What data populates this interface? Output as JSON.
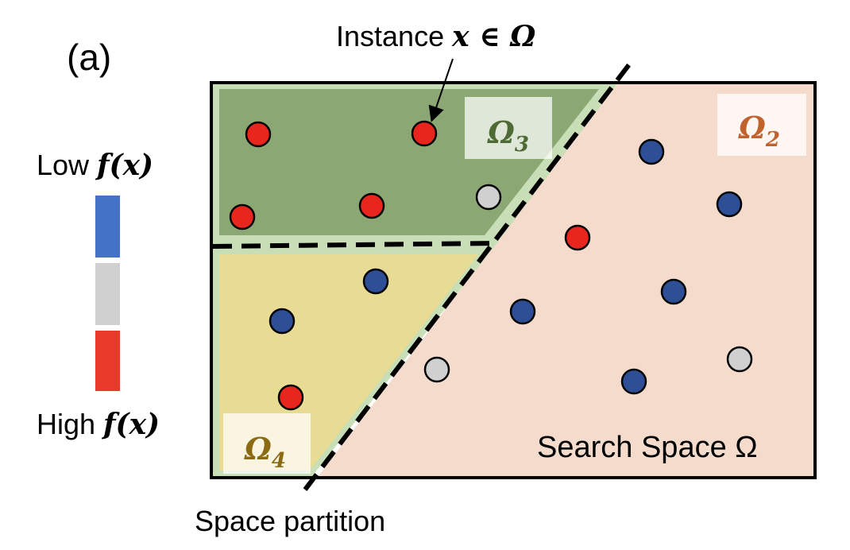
{
  "panel_label": "(a)",
  "legend": {
    "low_prefix": "Low ",
    "low_expr": "f(x)",
    "high_prefix": "High ",
    "high_expr": "f(x)",
    "colors": [
      "#4472C4",
      "#D0D0D0",
      "#E8392B"
    ]
  },
  "annotations": {
    "instance_prefix": "Instance ",
    "instance_math": "x ∈ Ω",
    "search_space": "Search Space Ω",
    "space_partition": "Space partition"
  },
  "regions": [
    {
      "name": "Ω",
      "sub": "3",
      "fill": "#8BA874",
      "label_color": "#4E6B35"
    },
    {
      "name": "Ω",
      "sub": "2",
      "fill": "#F5DBCB",
      "label_color": "#C0622E"
    },
    {
      "name": "Ω",
      "sub": "4",
      "fill": "#E8DC94",
      "label_color": "#8A6A12"
    }
  ],
  "point_colors": {
    "low": "#2E4F96",
    "mid": "#D0D0D0",
    "high": "#E8261E"
  }
}
